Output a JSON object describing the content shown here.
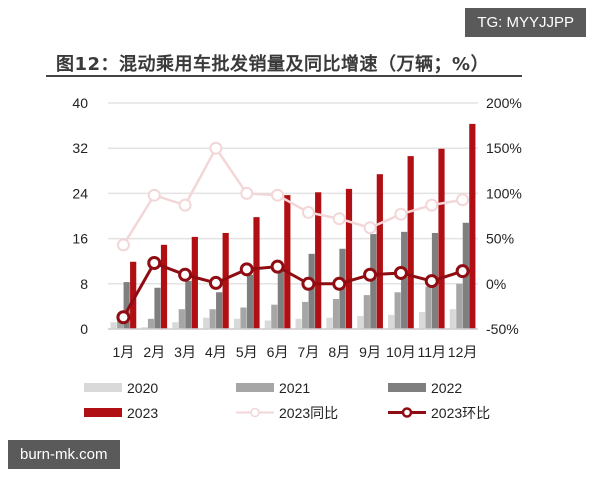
{
  "title": "图12：混动乘用车批发销量及同比增速（万辆；%）",
  "watermarks": {
    "top": "TG: MYYJJPP",
    "bottom": "burn-mk.com"
  },
  "colors": {
    "s2020": "#d9d9d9",
    "s2021": "#a6a6a6",
    "s2022": "#7f7f7f",
    "s2023": "#b00f14",
    "yoy": "#f3d6d8",
    "mom": "#8f0d12",
    "grid": "#e3e3e3"
  },
  "chart_data": {
    "type": "bar",
    "title": "图12：混动乘用车批发销量及同比增速（万辆；%）",
    "xlabel": "",
    "ylabel": "万辆",
    "y2label": "%",
    "categories": [
      "1月",
      "2月",
      "3月",
      "4月",
      "5月",
      "6月",
      "7月",
      "8月",
      "9月",
      "10月",
      "11月",
      "12月"
    ],
    "ylim": [
      0,
      40
    ],
    "yticks": [
      0,
      8,
      16,
      24,
      32,
      40
    ],
    "y2lim": [
      -50,
      200
    ],
    "y2ticks": [
      "-50%",
      "0%",
      "50%",
      "100%",
      "150%",
      "200%"
    ],
    "y2tick_values": [
      -50,
      0,
      50,
      100,
      150,
      200
    ],
    "grid": true,
    "legend_position": "bottom",
    "series": [
      {
        "name": "2020",
        "type": "bar",
        "axis": "left",
        "values": [
          1.2,
          0.3,
          1.2,
          2.0,
          1.8,
          1.5,
          1.8,
          2.0,
          2.3,
          2.5,
          3.0,
          3.5
        ]
      },
      {
        "name": "2021",
        "type": "bar",
        "axis": "left",
        "values": [
          1.5,
          1.8,
          3.5,
          3.5,
          3.8,
          4.3,
          4.8,
          5.3,
          6.0,
          6.5,
          7.5,
          8.0
        ]
      },
      {
        "name": "2022",
        "type": "bar",
        "axis": "left",
        "values": [
          8.3,
          7.3,
          8.5,
          6.5,
          9.6,
          10.8,
          13.3,
          14.2,
          16.8,
          17.2,
          17.0,
          18.8
        ]
      },
      {
        "name": "2023",
        "type": "bar",
        "axis": "left",
        "values": [
          11.9,
          14.9,
          16.3,
          17.0,
          19.8,
          23.7,
          24.2,
          24.8,
          27.4,
          30.6,
          31.9,
          36.3
        ]
      },
      {
        "name": "2023同比",
        "type": "line",
        "axis": "right",
        "values": [
          43,
          98,
          87,
          150,
          100,
          98,
          79,
          72,
          62,
          77,
          87,
          93
        ]
      },
      {
        "name": "2023环比",
        "type": "line",
        "axis": "right",
        "values": [
          -37,
          23,
          10,
          1,
          16,
          19,
          0,
          0,
          10,
          12,
          3,
          14
        ]
      }
    ]
  },
  "legend": [
    {
      "label": "2020",
      "kind": "bar",
      "color_key": "s2020"
    },
    {
      "label": "2021",
      "kind": "bar",
      "color_key": "s2021"
    },
    {
      "label": "2022",
      "kind": "bar",
      "color_key": "s2022"
    },
    {
      "label": "2023",
      "kind": "bar",
      "color_key": "s2023"
    },
    {
      "label": "2023同比",
      "kind": "line",
      "color_key": "yoy"
    },
    {
      "label": "2023环比",
      "kind": "line",
      "color_key": "mom"
    }
  ]
}
